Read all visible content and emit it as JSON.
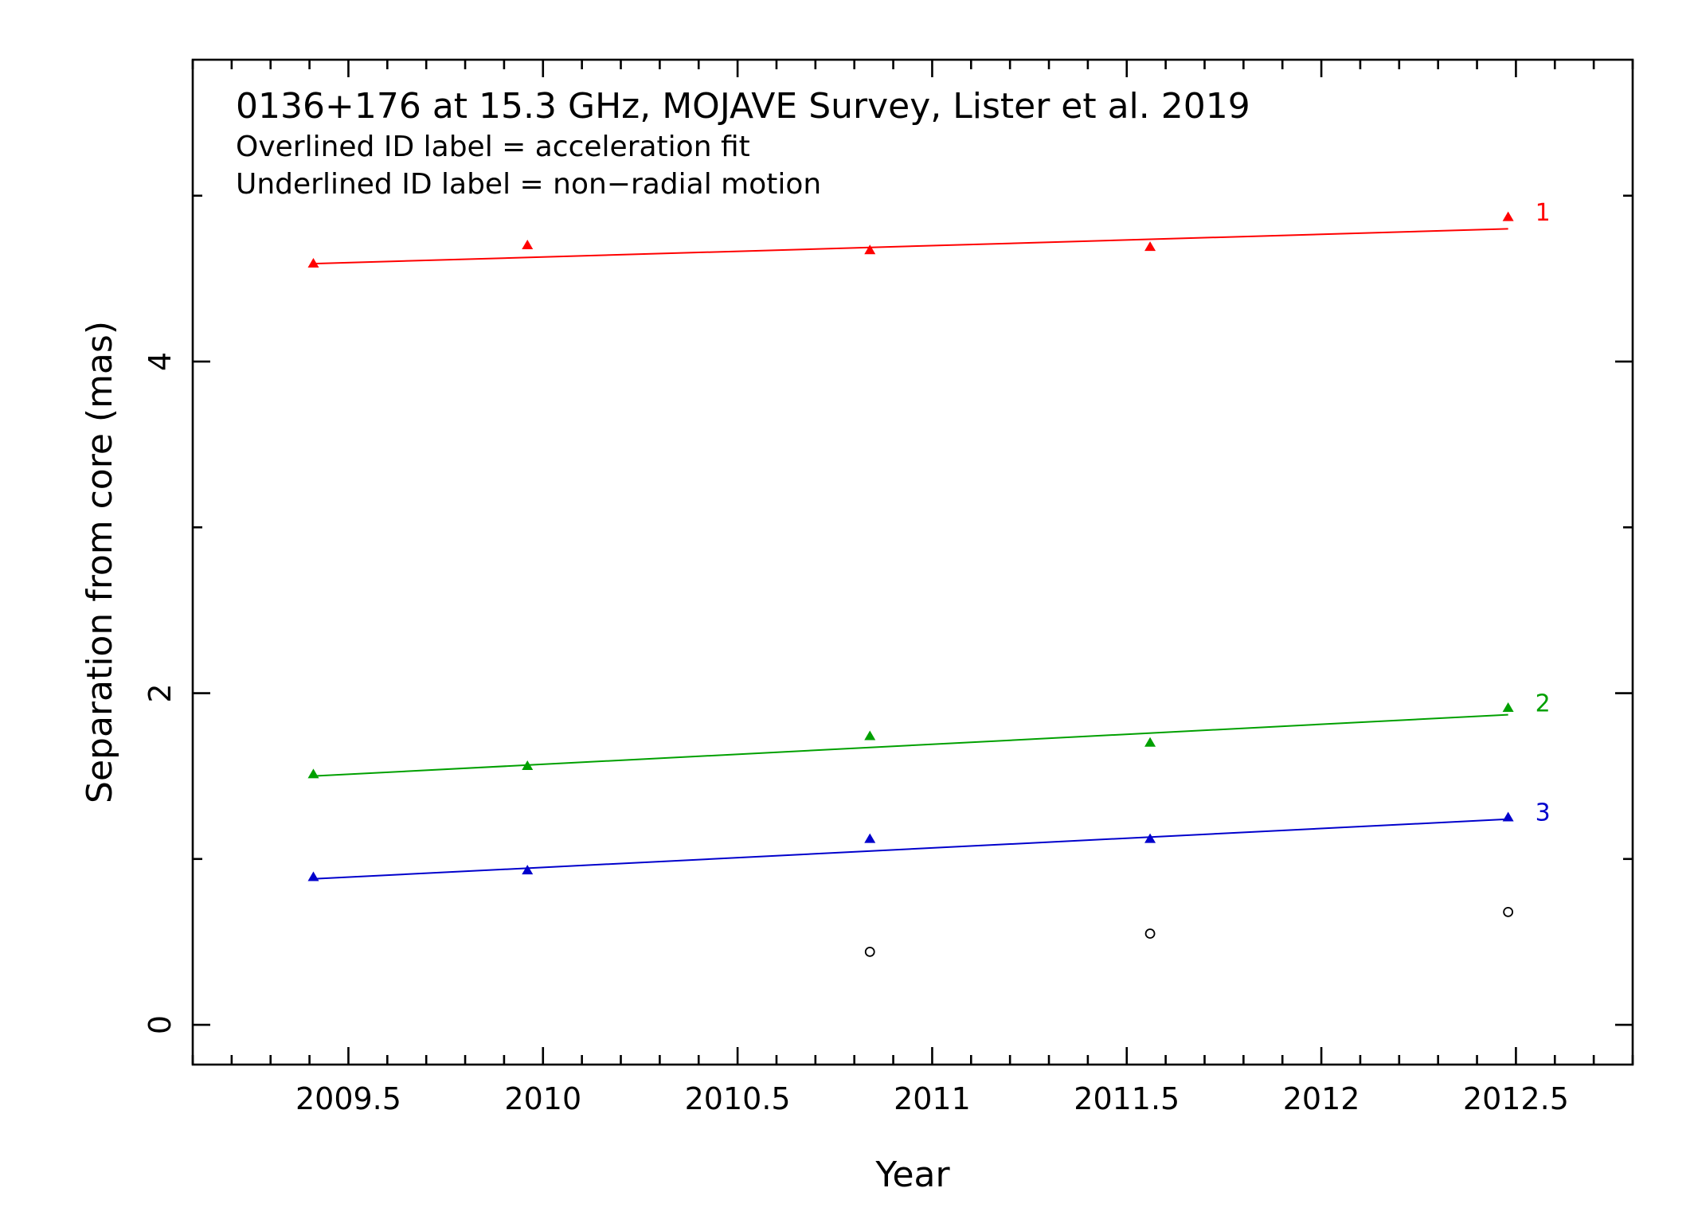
{
  "chart_data": {
    "type": "scatter",
    "title": "0136+176 at 15.3 GHz, MOJAVE Survey, Lister et al. 2019",
    "subtitles": [
      "Overlined ID label = acceleration fit",
      "Underlined ID label = non−radial motion"
    ],
    "xlabel": "Year",
    "ylabel": "Separation from core (mas)",
    "xlim": [
      2009.1,
      2012.8
    ],
    "ylim": [
      -0.24,
      5.82
    ],
    "x_ticks": [
      2009.5,
      2010,
      2010.5,
      2011,
      2011.5,
      2012,
      2012.5
    ],
    "x_tick_labels": [
      "2009.5",
      "2010",
      "2010.5",
      "2011",
      "2011.5",
      "2012",
      "2012.5"
    ],
    "y_ticks": [
      0,
      2,
      4
    ],
    "y_tick_labels": [
      "0",
      "2",
      "4"
    ],
    "grid": false,
    "series": [
      {
        "name": "1",
        "color": "#ff0000",
        "marker": "triangle",
        "x": [
          2009.41,
          2009.96,
          2010.84,
          2011.56,
          2012.48
        ],
        "y": [
          4.59,
          4.7,
          4.67,
          4.69,
          4.87
        ],
        "fit": {
          "x": [
            2009.41,
            2012.48
          ],
          "y": [
            4.59,
            4.8
          ]
        }
      },
      {
        "name": "2",
        "color": "#00a000",
        "marker": "triangle",
        "x": [
          2009.41,
          2009.96,
          2010.84,
          2011.56,
          2012.48
        ],
        "y": [
          1.51,
          1.56,
          1.74,
          1.7,
          1.91
        ],
        "fit": {
          "x": [
            2009.41,
            2012.48
          ],
          "y": [
            1.5,
            1.87
          ]
        }
      },
      {
        "name": "3",
        "color": "#0000cc",
        "marker": "triangle",
        "x": [
          2009.41,
          2009.96,
          2010.84,
          2011.56,
          2012.48
        ],
        "y": [
          0.89,
          0.93,
          1.12,
          1.12,
          1.25
        ],
        "fit": {
          "x": [
            2009.41,
            2012.48
          ],
          "y": [
            0.88,
            1.24
          ]
        }
      },
      {
        "color": "#000000",
        "marker": "circle",
        "x": [
          2010.84,
          2011.56,
          2012.48
        ],
        "y": [
          0.44,
          0.55,
          0.68
        ]
      }
    ]
  }
}
